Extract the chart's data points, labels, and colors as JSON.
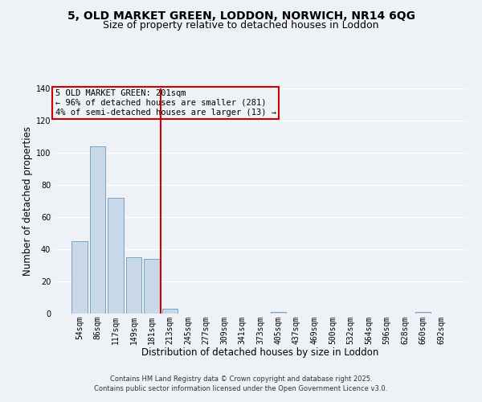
{
  "title": "5, OLD MARKET GREEN, LODDON, NORWICH, NR14 6QG",
  "subtitle": "Size of property relative to detached houses in Loddon",
  "xlabel": "Distribution of detached houses by size in Loddon",
  "ylabel": "Number of detached properties",
  "bar_labels": [
    "54sqm",
    "86sqm",
    "117sqm",
    "149sqm",
    "181sqm",
    "213sqm",
    "245sqm",
    "277sqm",
    "309sqm",
    "341sqm",
    "373sqm",
    "405sqm",
    "437sqm",
    "469sqm",
    "500sqm",
    "532sqm",
    "564sqm",
    "596sqm",
    "628sqm",
    "660sqm",
    "692sqm"
  ],
  "bar_values": [
    45,
    104,
    72,
    35,
    34,
    3,
    0,
    0,
    0,
    0,
    0,
    1,
    0,
    0,
    0,
    0,
    0,
    0,
    0,
    1,
    0
  ],
  "bar_color": "#c8d8e8",
  "bar_edge_color": "#6699bb",
  "vline_pos": 4.5,
  "vline_color": "#cc0000",
  "ylim": [
    0,
    140
  ],
  "yticks": [
    0,
    20,
    40,
    60,
    80,
    100,
    120,
    140
  ],
  "annotation_line1": "5 OLD MARKET GREEN: 201sqm",
  "annotation_line2": "← 96% of detached houses are smaller (281)",
  "annotation_line3": "4% of semi-detached houses are larger (13) →",
  "annotation_box_color": "#cc0000",
  "footer1": "Contains HM Land Registry data © Crown copyright and database right 2025.",
  "footer2": "Contains public sector information licensed under the Open Government Licence v3.0.",
  "background_color": "#eef2f7",
  "grid_color": "#ffffff",
  "title_fontsize": 10,
  "subtitle_fontsize": 9,
  "axis_label_fontsize": 8.5,
  "tick_fontsize": 7,
  "footer_fontsize": 6,
  "ann_fontsize": 7.5
}
